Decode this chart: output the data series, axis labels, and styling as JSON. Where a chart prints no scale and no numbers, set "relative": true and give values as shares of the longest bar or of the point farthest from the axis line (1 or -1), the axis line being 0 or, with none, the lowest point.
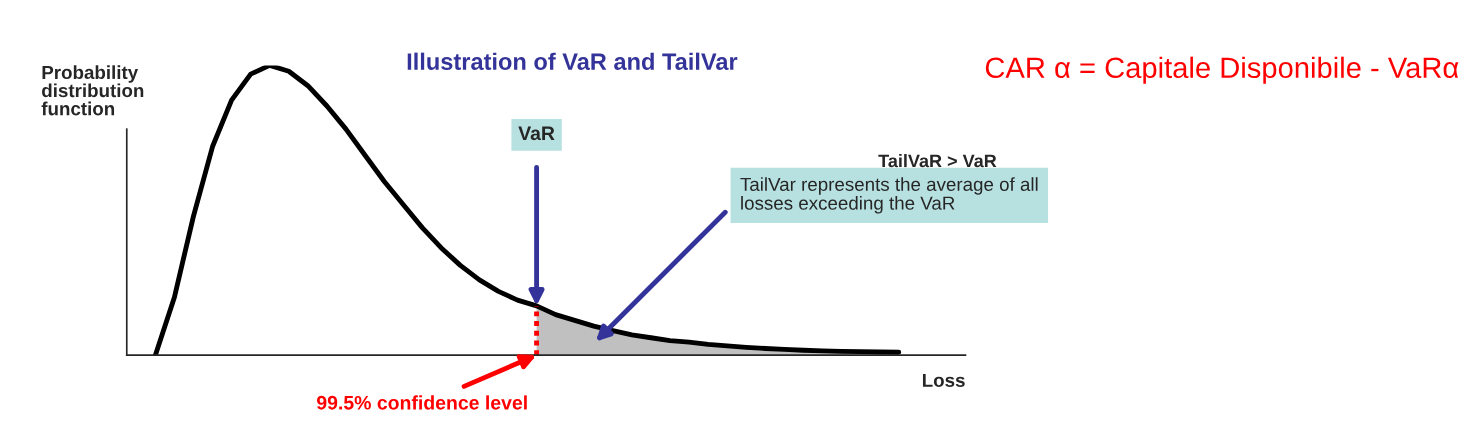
{
  "chart_data": {
    "type": "line",
    "relative": true,
    "title": "Illustration of VaR and TailVar",
    "ylabel": "Probability distribution function",
    "xlabel": "Loss",
    "legend": false,
    "categories": [
      null,
      null,
      null,
      null,
      null,
      null,
      null,
      null,
      null,
      null,
      null,
      null,
      null,
      null,
      null,
      null,
      null,
      null,
      null,
      null,
      null,
      null,
      null,
      null,
      null,
      null,
      null,
      null,
      null,
      null,
      null,
      null,
      null,
      null,
      null,
      null,
      null,
      null,
      null,
      null
    ],
    "series": [
      {
        "color": "#000000",
        "values": [
          0,
          0.2,
          0.48,
          0.72,
          0.88,
          0.97,
          1.0,
          0.98,
          0.93,
          0.86,
          0.78,
          0.69,
          0.6,
          0.52,
          0.44,
          0.37,
          0.31,
          0.26,
          0.22,
          0.19,
          0.17,
          0.14,
          0.12,
          0.1,
          0.085,
          0.07,
          0.06,
          0.05,
          0.045,
          0.037,
          0.032,
          0.027,
          0.023,
          0.02,
          0.017,
          0.015,
          0.013,
          0.012,
          0.011,
          0.01
        ]
      },
      {
        "type": "area",
        "color": "#c0c0c0",
        "values": [
          null,
          null,
          null,
          null,
          null,
          null,
          null,
          null,
          null,
          null,
          null,
          null,
          null,
          null,
          null,
          null,
          null,
          null,
          null,
          null,
          0.17,
          0.14,
          0.12,
          0.1,
          0.085,
          0.07,
          0.06,
          0.05,
          0.045,
          0.037,
          0.032,
          0.027,
          0.023,
          0.02,
          0.017,
          0.015,
          0.013,
          0.012,
          0.011,
          0.01
        ]
      }
    ],
    "annotations": [
      "VaR",
      "TailVaR > VaR",
      "TailVar represents the average of all losses exceeding the VaR",
      "99.5% confidence level",
      "CAR α = Capitale Disponibile - VaRα"
    ]
  }
}
